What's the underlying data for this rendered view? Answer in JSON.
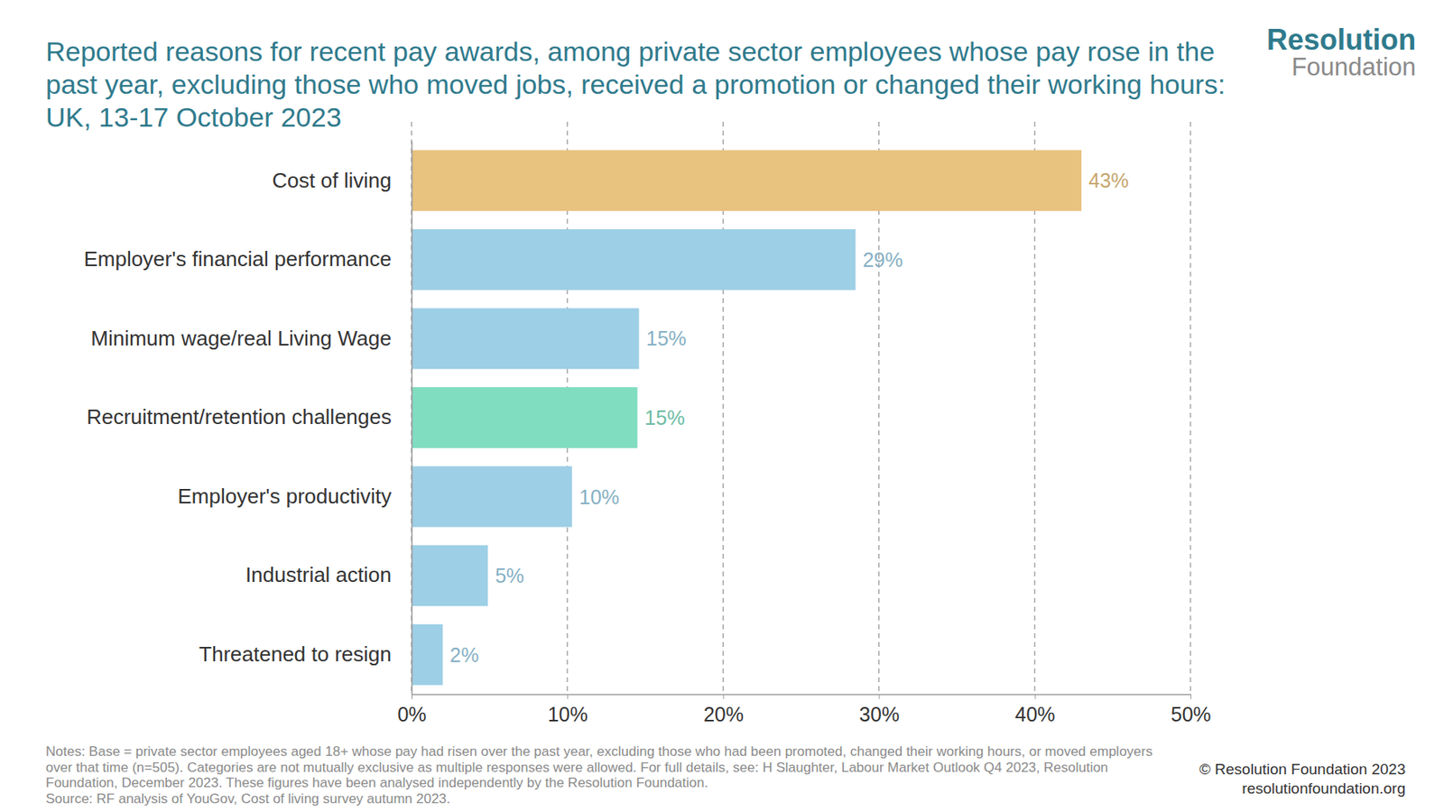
{
  "chart_data": {
    "type": "bar",
    "orientation": "horizontal",
    "title": "Reported reasons for recent pay awards, among private sector employees whose pay rose in the past year, excluding those who moved jobs, received a promotion or changed their working hours: UK, 13-17 October 2023",
    "categories": [
      "Cost of living",
      "Employer's financial performance",
      "Minimum wage/real Living Wage",
      "Recruitment/retention challenges",
      "Employer's productivity",
      "Industrial action",
      "Threatened to resign"
    ],
    "values": [
      43,
      28.5,
      14.6,
      14.5,
      10.3,
      4.9,
      2
    ],
    "value_labels": [
      "43%",
      "29%",
      "15%",
      "15%",
      "10%",
      "5%",
      "2%"
    ],
    "colors": [
      "#e8c27f",
      "#9dcfe6",
      "#9dcfe6",
      "#80ddc0",
      "#9dcfe6",
      "#9dcfe6",
      "#9dcfe6"
    ],
    "data_labels": true,
    "grid": true,
    "xlim": [
      0,
      50
    ],
    "xticks": [
      {
        "value": 0,
        "label": "0%"
      },
      {
        "value": 10,
        "label": "10%"
      },
      {
        "value": 20,
        "label": "20%"
      },
      {
        "value": 30,
        "label": "30%"
      },
      {
        "value": 40,
        "label": "40%"
      },
      {
        "value": 50,
        "label": "50%"
      }
    ],
    "notes": "Notes: Base = private sector employees aged 18+ whose pay had risen over the past year, excluding those who had been promoted, changed their working hours, or moved employers over that time (n=505). Categories are not mutually exclusive as multiple responses were allowed. For full details, see: H Slaughter, Labour Market Outlook Q4 2023, Resolution Foundation, December 2023. These figures have been analysed independently by the Resolution Foundation.",
    "source": "Source: RF analysis of YouGov, Cost of living survey autumn 2023.",
    "logo": [
      "Resolution",
      "Foundation"
    ],
    "credits": [
      "© Resolution Foundation 2023",
      "resolutionfoundation.org"
    ]
  }
}
